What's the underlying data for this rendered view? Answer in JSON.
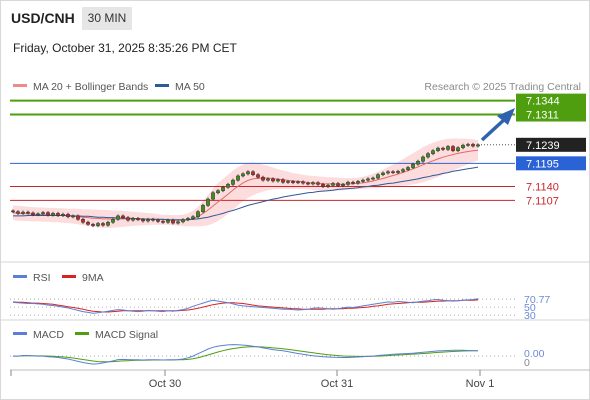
{
  "header": {
    "symbol": "USD/CNH",
    "timeframe": "30 MIN",
    "datetime": "Friday, October 31, 2025 8:35:26 PM CET"
  },
  "legend": {
    "bollinger_label": "MA 20 + Bollinger Bands",
    "ma50_label": "MA 50",
    "credit": "Research © 2025 Trading Central",
    "bollinger_color": "#f08a8a",
    "ma50_color": "#2d5a9a"
  },
  "chart_data": [
    {
      "type": "candlestick",
      "yrange": [
        7.097,
        7.1355
      ],
      "current_price": 7.1239,
      "levels": [
        {
          "value": 7.1344,
          "label": "7.1344",
          "kind": "resistance",
          "color": "#4f9e10"
        },
        {
          "value": 7.1311,
          "label": "7.1311",
          "kind": "resistance",
          "color": "#4f9e10"
        },
        {
          "value": 7.1195,
          "label": "7.1195",
          "kind": "pivot",
          "color": "#2a63d6"
        },
        {
          "value": 7.114,
          "label": "7.1140",
          "kind": "support",
          "color": "#c9262c"
        },
        {
          "value": 7.1107,
          "label": "7.1107",
          "kind": "support",
          "color": "#c9262c"
        }
      ],
      "closes": [
        7.108,
        7.1076,
        7.1079,
        7.1077,
        7.1073,
        7.1075,
        7.1078,
        7.1072,
        7.1076,
        7.1071,
        7.1074,
        7.1068,
        7.107,
        7.1062,
        7.1055,
        7.105,
        7.1047,
        7.1052,
        7.1048,
        7.1055,
        7.1062,
        7.107,
        7.1066,
        7.106,
        7.1064,
        7.1061,
        7.1058,
        7.1062,
        7.106,
        7.1057,
        7.1055,
        7.106,
        7.1053,
        7.1056,
        7.1061,
        7.1064,
        7.1068,
        7.108,
        7.1095,
        7.111,
        7.1125,
        7.113,
        7.1138,
        7.1145,
        7.1155,
        7.1165,
        7.117,
        7.1175,
        7.1168,
        7.1162,
        7.1155,
        7.1158,
        7.1153,
        7.1156,
        7.115,
        7.1152,
        7.1149,
        7.1151,
        7.1148,
        7.1146,
        7.1149,
        7.1145,
        7.114,
        7.1143,
        7.1147,
        7.1142,
        7.1145,
        7.115,
        7.1148,
        7.1152,
        7.1155,
        7.1158,
        7.116,
        7.1168,
        7.1172,
        7.1175,
        7.1173,
        7.1176,
        7.118,
        7.1185,
        7.1193,
        7.12,
        7.121,
        7.1218,
        7.1225,
        7.1231,
        7.1228,
        7.1235,
        7.1225,
        7.1232,
        7.1238,
        7.124,
        7.1236,
        7.1239
      ],
      "ma20_upper": [
        7.1095,
        7.1094,
        7.1093,
        7.1092,
        7.1091,
        7.109,
        7.109,
        7.1089,
        7.1089,
        7.1088,
        7.1088,
        7.1087,
        7.1087,
        7.1087,
        7.1086,
        7.1086,
        7.1085,
        7.1085,
        7.1084,
        7.1084,
        7.1083,
        7.1083,
        7.1082,
        7.1081,
        7.108,
        7.1079,
        7.1078,
        7.1077,
        7.1076,
        7.1074,
        7.1073,
        7.1073,
        7.1072,
        7.1072,
        7.1073,
        7.1076,
        7.1082,
        7.1092,
        7.1105,
        7.112,
        7.1135,
        7.1148,
        7.1158,
        7.1168,
        7.1178,
        7.1186,
        7.1192,
        7.1196,
        7.1197,
        7.1195,
        7.1192,
        7.1189,
        7.1185,
        7.1181,
        7.1178,
        7.1175,
        7.1172,
        7.117,
        7.1168,
        7.1166,
        7.1165,
        7.1164,
        7.1163,
        7.1162,
        7.1162,
        7.1161,
        7.116,
        7.116,
        7.116,
        7.1161,
        7.1163,
        7.1166,
        7.117,
        7.1175,
        7.118,
        7.1186,
        7.1192,
        7.1198,
        7.1205,
        7.1212,
        7.1219,
        7.1226,
        7.1233,
        7.1239,
        7.1244,
        7.1248,
        7.1251,
        7.1253,
        7.1254,
        7.1254,
        7.1254,
        7.1253,
        7.1252,
        7.125
      ],
      "ma20_lower": [
        7.106,
        7.1059,
        7.1058,
        7.1058,
        7.1057,
        7.1057,
        7.1056,
        7.1056,
        7.1055,
        7.1055,
        7.1054,
        7.1053,
        7.1052,
        7.105,
        7.1048,
        7.1046,
        7.1044,
        7.1043,
        7.1042,
        7.1042,
        7.1042,
        7.1043,
        7.1044,
        7.1045,
        7.1046,
        7.1047,
        7.1048,
        7.1048,
        7.1049,
        7.1049,
        7.1049,
        7.1049,
        7.1048,
        7.1047,
        7.1046,
        7.1045,
        7.1045,
        7.1045,
        7.1046,
        7.1048,
        7.1052,
        7.1058,
        7.1066,
        7.1075,
        7.1085,
        7.1095,
        7.1105,
        7.1113,
        7.1119,
        7.1124,
        7.1128,
        7.1131,
        7.1133,
        7.1134,
        7.1134,
        7.1134,
        7.1134,
        7.1134,
        7.1134,
        7.1133,
        7.1132,
        7.1131,
        7.113,
        7.113,
        7.113,
        7.113,
        7.1131,
        7.1132,
        7.1133,
        7.1134,
        7.1134,
        7.1135,
        7.1136,
        7.1137,
        7.1138,
        7.1139,
        7.114,
        7.1141,
        7.1142,
        7.1143,
        7.1145,
        7.1147,
        7.115,
        7.1154,
        7.1158,
        7.1163,
        7.1168,
        7.1173,
        7.1178,
        7.1183,
        7.1188,
        7.1193,
        7.1198,
        7.1202
      ],
      "ma50": [
        7.107,
        7.107,
        7.107,
        7.1071,
        7.1071,
        7.1071,
        7.1071,
        7.1071,
        7.1071,
        7.1071,
        7.1071,
        7.1071,
        7.107,
        7.107,
        7.1069,
        7.1069,
        7.1068,
        7.1067,
        7.1067,
        7.1066,
        7.1066,
        7.1065,
        7.1065,
        7.1064,
        7.1064,
        7.1063,
        7.1063,
        7.1062,
        7.1062,
        7.1062,
        7.1062,
        7.1061,
        7.1061,
        7.1061,
        7.1061,
        7.1061,
        7.1062,
        7.1063,
        7.1065,
        7.1067,
        7.107,
        7.1073,
        7.1076,
        7.108,
        7.1083,
        7.1087,
        7.1091,
        7.1095,
        7.1098,
        7.1101,
        7.1104,
        7.1107,
        7.111,
        7.1112,
        7.1115,
        7.1117,
        7.1119,
        7.1121,
        7.1123,
        7.1125,
        7.1126,
        7.1128,
        7.1129,
        7.113,
        7.1131,
        7.1133,
        7.1134,
        7.1135,
        7.1136,
        7.1137,
        7.1139,
        7.114,
        7.1142,
        7.1143,
        7.1145,
        7.1147,
        7.1148,
        7.115,
        7.1152,
        7.1154,
        7.1156,
        7.1158,
        7.1161,
        7.1163,
        7.1166,
        7.1168,
        7.1171,
        7.1173,
        7.1176,
        7.1178,
        7.118,
        7.1182,
        7.1184,
        7.1186
      ]
    },
    {
      "type": "line",
      "legend": [
        "RSI",
        "9MA"
      ],
      "series_colors": [
        "#5b7fd6",
        "#d8231f"
      ],
      "yrange": [
        28,
        100
      ],
      "tick_labels": [
        "70.77",
        "50",
        "30"
      ],
      "rsi": [
        62,
        61,
        60,
        59,
        59,
        58,
        57,
        55,
        54,
        52,
        50,
        48,
        45,
        42,
        39,
        37,
        35,
        36,
        38,
        40,
        42,
        44,
        43,
        41,
        40,
        39,
        40,
        42,
        41,
        40,
        39,
        41,
        40,
        42,
        44,
        47,
        52,
        56,
        60,
        64,
        67,
        65,
        63,
        61,
        58,
        55,
        53,
        52,
        51,
        50,
        49,
        48,
        47,
        46,
        45,
        45,
        44,
        43,
        44,
        45,
        47,
        48,
        47,
        46,
        45,
        46,
        48,
        50,
        49,
        51,
        53,
        55,
        57,
        59,
        61,
        63,
        62,
        64,
        63,
        62,
        61,
        63,
        65,
        66,
        68,
        69,
        67,
        66,
        65,
        66,
        67,
        68,
        69,
        70.77
      ],
      "ma9": [
        63,
        62,
        62,
        61,
        60,
        60,
        59,
        58,
        57,
        55,
        53,
        51,
        49,
        47,
        45,
        42,
        40,
        39,
        38,
        38,
        39,
        40,
        41,
        41,
        41,
        41,
        41,
        41,
        41,
        41,
        41,
        41,
        41,
        41,
        42,
        43,
        45,
        47,
        50,
        53,
        56,
        58,
        60,
        61,
        61,
        60,
        59,
        57,
        55,
        53,
        52,
        51,
        50,
        49,
        48,
        47,
        46,
        46,
        45,
        45,
        45,
        45,
        45,
        46,
        46,
        46,
        46,
        47,
        47,
        48,
        49,
        50,
        52,
        53,
        55,
        57,
        58,
        59,
        60,
        61,
        62,
        62,
        62,
        63,
        64,
        65,
        65,
        66,
        66,
        66,
        67,
        67,
        67,
        68
      ]
    },
    {
      "type": "line",
      "legend": [
        "MACD",
        "MACD Signal"
      ],
      "series_colors": [
        "#5b7fd6",
        "#4f9e10"
      ],
      "yrange": [
        -0.0011,
        0.0012
      ],
      "tick_labels": [
        "0.00",
        "0"
      ],
      "macd": [
        0.0,
        0.0,
        5e-05,
        5e-05,
        2e-05,
        0.0,
        0.0,
        -5e-05,
        -8e-05,
        -0.00012,
        -0.00018,
        -0.00025,
        -0.00035,
        -0.00045,
        -0.00055,
        -0.00062,
        -0.00068,
        -0.00065,
        -0.00058,
        -0.0005,
        -0.0004,
        -0.0003,
        -0.00028,
        -0.0003,
        -0.00031,
        -0.00032,
        -0.00033,
        -0.00031,
        -0.00031,
        -0.00032,
        -0.00033,
        -0.00031,
        -0.00032,
        -0.0003,
        -0.00025,
        -0.00015,
        0.0,
        0.0002,
        0.0004,
        0.0006,
        0.00075,
        0.00085,
        0.0009,
        0.00095,
        0.00098,
        0.00097,
        0.00094,
        0.0009,
        0.00084,
        0.00078,
        0.0007,
        0.00062,
        0.00055,
        0.0005,
        0.00045,
        0.00038,
        0.0003,
        0.00022,
        0.00015,
        8e-05,
        3e-05,
        -2e-05,
        -5e-05,
        -8e-05,
        -0.0001,
        -0.00011,
        -0.00012,
        -0.00012,
        -0.0001,
        -8e-05,
        -5e-05,
        -2e-05,
        0.0,
        5e-05,
        8e-05,
        0.00012,
        0.00015,
        0.00018,
        0.0002,
        0.00022,
        0.00025,
        0.00028,
        0.00032,
        0.00036,
        0.0004,
        0.00044,
        0.00046,
        0.00048,
        0.0005,
        0.0005,
        0.00049,
        0.00048,
        0.00047,
        0.00046
      ],
      "signal": [
        0.0,
        0.0,
        2e-05,
        3e-05,
        3e-05,
        2e-05,
        2e-05,
        0.0,
        -2e-05,
        -4e-05,
        -7e-05,
        -0.00011,
        -0.00016,
        -0.00022,
        -0.00029,
        -0.00036,
        -0.00042,
        -0.00047,
        -0.00049,
        -0.00049,
        -0.00047,
        -0.00044,
        -0.00041,
        -0.00039,
        -0.00037,
        -0.00036,
        -0.00035,
        -0.00034,
        -0.00033,
        -0.00033,
        -0.00033,
        -0.00033,
        -0.00033,
        -0.00032,
        -0.00031,
        -0.00028,
        -0.00022,
        -0.00014,
        -3e-05,
        9e-05,
        0.00022,
        0.00035,
        0.00046,
        0.00056,
        0.00064,
        0.0007,
        0.00075,
        0.00078,
        0.00079,
        0.00079,
        0.00077,
        0.00074,
        0.0007,
        0.00066,
        0.00062,
        0.00057,
        0.00052,
        0.00046,
        0.0004,
        0.00034,
        0.00028,
        0.00022,
        0.00017,
        0.00012,
        8e-05,
        4e-05,
        1e-05,
        -1e-05,
        -2e-05,
        -3e-05,
        -3e-05,
        -3e-05,
        -2e-05,
        0.0,
        2e-05,
        4e-05,
        7e-05,
        9e-05,
        0.00012,
        0.00014,
        0.00017,
        0.00019,
        0.00022,
        0.00025,
        0.00028,
        0.00031,
        0.00034,
        0.00037,
        0.00039,
        0.00041,
        0.00043,
        0.00044,
        0.00045,
        0.00045
      ]
    }
  ],
  "x_axis": {
    "tick_labels": [
      "Oct 30",
      "Oct 31",
      "Nov 1"
    ]
  }
}
